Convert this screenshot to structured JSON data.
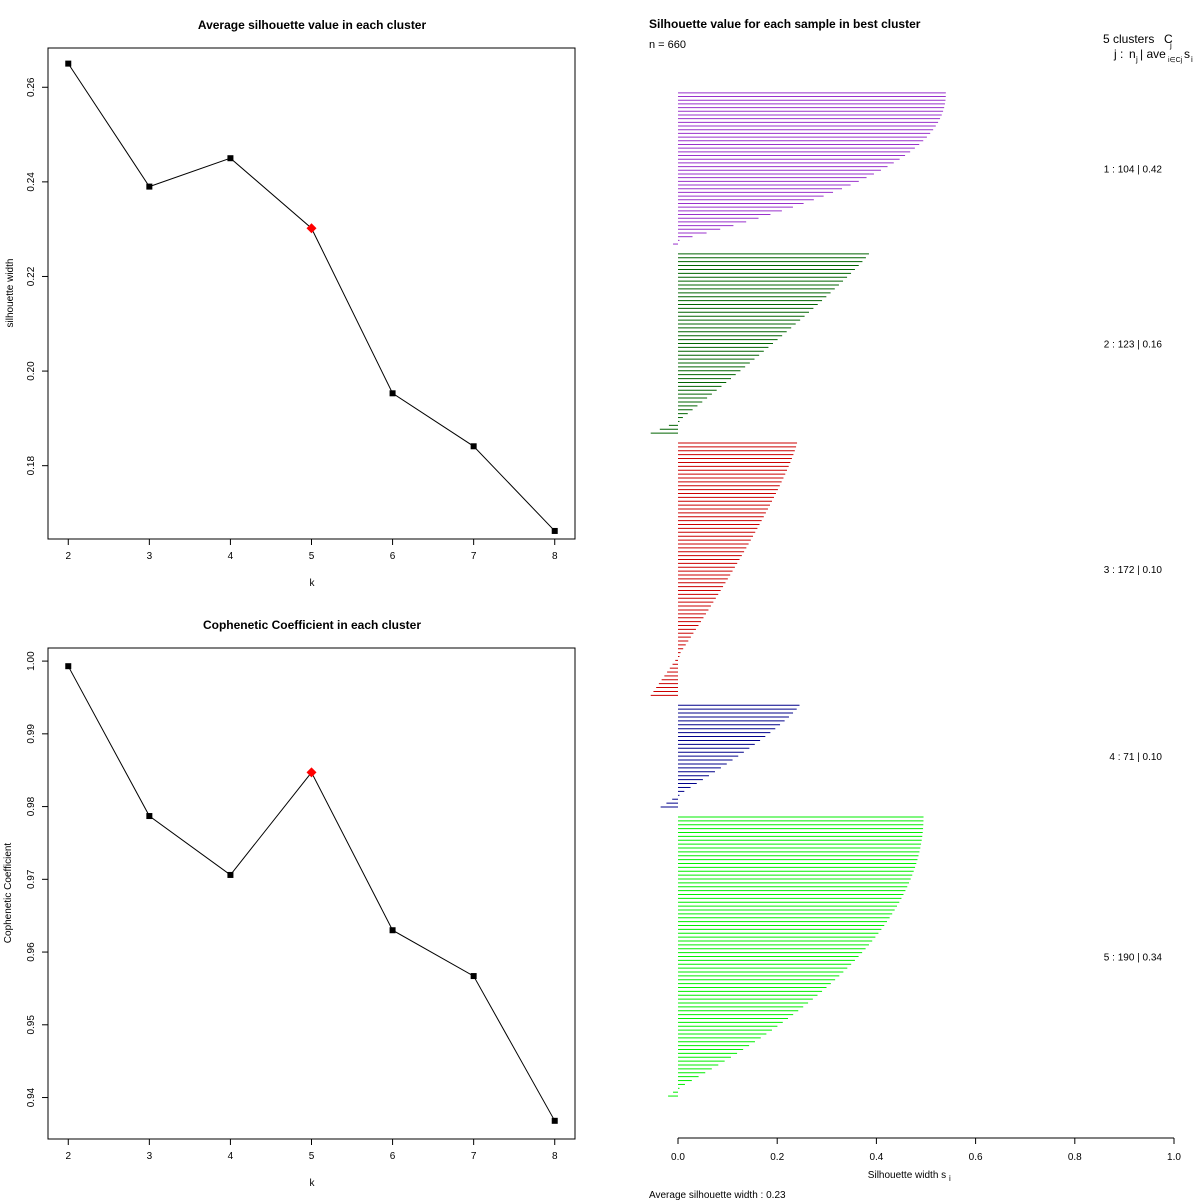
{
  "colors": {
    "line": "#000000",
    "highlight": "#ff0000",
    "cluster1": "#9932cc",
    "cluster2": "#006400",
    "cluster3": "#cc0000",
    "cluster4": "#00008b",
    "cluster5": "#00ee00"
  },
  "chart_data": [
    {
      "type": "line",
      "title": "Average silhouette value in each cluster",
      "xlabel": "k",
      "ylabel": "silhouette width",
      "x": [
        2,
        3,
        4,
        5,
        6,
        7,
        8
      ],
      "values": [
        0.265,
        0.239,
        0.245,
        0.2302,
        0.1953,
        0.1841,
        0.1662
      ],
      "highlight_x": 5,
      "xlim": [
        1.75,
        8.25
      ],
      "ylim": [
        0.1645,
        0.2683
      ],
      "x_ticks": [
        "2",
        "3",
        "4",
        "5",
        "6",
        "7",
        "8"
      ],
      "y_ticks": [
        "0.18",
        "0.20",
        "0.22",
        "0.24",
        "0.26"
      ],
      "y_tick_values": [
        0.18,
        0.2,
        0.22,
        0.24,
        0.26
      ]
    },
    {
      "type": "line",
      "title": "Cophenetic Coefficient in each cluster",
      "xlabel": "k",
      "ylabel": "Cophenetic Coefficient",
      "x": [
        2,
        3,
        4,
        5,
        6,
        7,
        8
      ],
      "values": [
        0.9993,
        0.9787,
        0.9706,
        0.9847,
        0.963,
        0.9567,
        0.9368
      ],
      "highlight_x": 5,
      "xlim": [
        1.75,
        8.25
      ],
      "ylim": [
        0.9343,
        1.0018
      ],
      "x_ticks": [
        "2",
        "3",
        "4",
        "5",
        "6",
        "7",
        "8"
      ],
      "y_ticks": [
        "0.94",
        "0.95",
        "0.96",
        "0.97",
        "0.98",
        "0.99",
        "1.00"
      ],
      "y_tick_values": [
        0.94,
        0.95,
        0.96,
        0.97,
        0.98,
        0.99,
        1.0
      ]
    },
    {
      "type": "bar",
      "orientation": "horizontal",
      "title": "Silhouette value for each sample in best cluster",
      "n_label": "n = 660",
      "header": {
        "clusters": "5 clusters",
        "Cj": "C",
        "Cj_sub": "j",
        "row2_j": "j :",
        "row2_n": "n",
        "row2_n_sub": "j",
        "row2_sep": "| ave",
        "row2_ave_sub": "i∈Cj",
        "row2_s": "s",
        "row2_s_sub": "i"
      },
      "xlabel": "Silhouette width s",
      "xlabel_sub": "i",
      "xlim": [
        0,
        1
      ],
      "x_ticks": [
        "0.0",
        "0.2",
        "0.4",
        "0.6",
        "0.8",
        "1.0"
      ],
      "x_tick_values": [
        0,
        0.2,
        0.4,
        0.6,
        0.8,
        1.0
      ],
      "average_label": "Average silhouette width :  0.23",
      "clusters": [
        {
          "id": 1,
          "n": 104,
          "avg": 0.42,
          "label": "1 :  104  |  0.42",
          "color_key": "cluster1",
          "max": 0.54,
          "min": -0.01,
          "lines": 42,
          "neg_lines": 1,
          "shape": 2.2
        },
        {
          "id": 2,
          "n": 123,
          "avg": 0.16,
          "label": "2 :  123  |  0.16",
          "color_key": "cluster2",
          "max": 0.385,
          "min": -0.055,
          "lines": 47,
          "neg_lines": 3,
          "shape": 1.1
        },
        {
          "id": 3,
          "n": 172,
          "avg": 0.1,
          "label": "3 :  172  |  0.10",
          "color_key": "cluster3",
          "max": 0.24,
          "min": -0.055,
          "lines": 66,
          "neg_lines": 10,
          "shape": 1.2
        },
        {
          "id": 4,
          "n": 71,
          "avg": 0.1,
          "label": "4 :  71  |  0.10",
          "color_key": "cluster4",
          "max": 0.245,
          "min": -0.035,
          "lines": 27,
          "neg_lines": 3,
          "shape": 1.2
        },
        {
          "id": 5,
          "n": 190,
          "avg": 0.34,
          "label": "5 :  190  |  0.34",
          "color_key": "cluster5",
          "max": 0.495,
          "min": -0.02,
          "lines": 73,
          "neg_lines": 2,
          "shape": 2.0
        }
      ]
    }
  ]
}
